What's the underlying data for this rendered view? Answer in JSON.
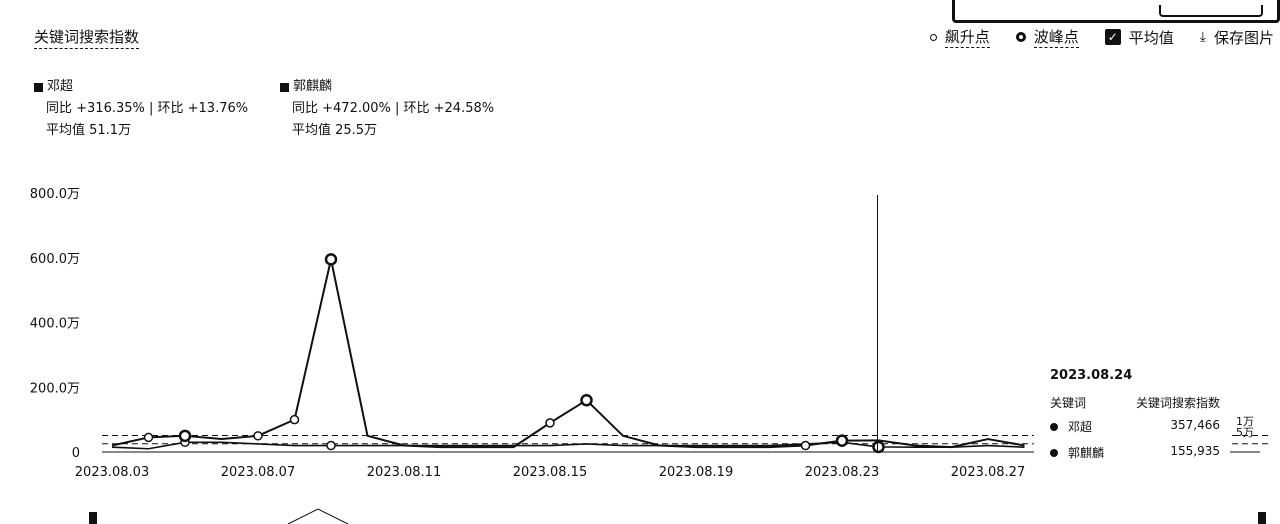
{
  "title": "关键词搜索指数",
  "toolbar": {
    "surge_label": "飙升点",
    "peak_label": "波峰点",
    "avg_label": "平均值",
    "save_label": "保存图片",
    "avg_checked": true
  },
  "legend": [
    {
      "name": "邓超",
      "stat": "同比 +316.35% | 环比 +13.76%",
      "avg": "平均值 51.1万"
    },
    {
      "name": "郭麒麟",
      "stat": "同比 +472.00% | 环比 +24.58%",
      "avg": "平均值 25.5万"
    }
  ],
  "tooltip": {
    "date": "2023.08.24",
    "col1": "关键词",
    "col2": "关键词搜索指数",
    "rows": [
      {
        "name": "邓超",
        "value": "357,466"
      },
      {
        "name": "郭麒麟",
        "value": "155,935"
      }
    ]
  },
  "side_labels": {
    "l1": "1万",
    "l2": "5万"
  },
  "chart_data": {
    "type": "line",
    "x": [
      "2023.08.03",
      "2023.08.04",
      "2023.08.05",
      "2023.08.06",
      "2023.08.07",
      "2023.08.08",
      "2023.08.09",
      "2023.08.10",
      "2023.08.11",
      "2023.08.12",
      "2023.08.13",
      "2023.08.14",
      "2023.08.15",
      "2023.08.16",
      "2023.08.17",
      "2023.08.18",
      "2023.08.19",
      "2023.08.20",
      "2023.08.21",
      "2023.08.22",
      "2023.08.23",
      "2023.08.24",
      "2023.08.25",
      "2023.08.26",
      "2023.08.27",
      "2023.08.28"
    ],
    "xticks": [
      "2023.08.03",
      "2023.08.07",
      "2023.08.11",
      "2023.08.15",
      "2023.08.19",
      "2023.08.23",
      "2023.08.27"
    ],
    "ylim": [
      0,
      8000000
    ],
    "yticks": [
      0,
      2000000,
      4000000,
      6000000,
      8000000
    ],
    "ytick_labels": [
      "0",
      "200.0万",
      "400.0万",
      "600.0万",
      "800.0万"
    ],
    "series": [
      {
        "name": "邓超",
        "values": [
          200000,
          450000,
          500000,
          400000,
          500000,
          1000000,
          5950000,
          500000,
          200000,
          150000,
          150000,
          150000,
          900000,
          1600000,
          500000,
          200000,
          150000,
          150000,
          150000,
          200000,
          350000,
          357466,
          200000,
          150000,
          400000,
          200000
        ]
      },
      {
        "name": "郭麒麟",
        "values": [
          150000,
          100000,
          300000,
          300000,
          250000,
          200000,
          200000,
          200000,
          200000,
          200000,
          200000,
          200000,
          200000,
          250000,
          200000,
          200000,
          200000,
          200000,
          200000,
          250000,
          300000,
          155935,
          150000,
          150000,
          200000,
          150000
        ]
      }
    ],
    "surge_points": [
      {
        "series": 0,
        "index": 1
      },
      {
        "series": 0,
        "index": 2
      },
      {
        "series": 0,
        "index": 4
      },
      {
        "series": 0,
        "index": 5
      },
      {
        "series": 0,
        "index": 12
      },
      {
        "series": 0,
        "index": 19
      },
      {
        "series": 1,
        "index": 2
      },
      {
        "series": 1,
        "index": 6
      },
      {
        "series": 1,
        "index": 21
      }
    ],
    "peak_points": [
      {
        "series": 0,
        "index": 2
      },
      {
        "series": 0,
        "index": 6
      },
      {
        "series": 0,
        "index": 13
      },
      {
        "series": 0,
        "index": 20
      },
      {
        "series": 1,
        "index": 21
      }
    ],
    "averages": [
      511000,
      255000
    ],
    "hover_index": 21
  }
}
